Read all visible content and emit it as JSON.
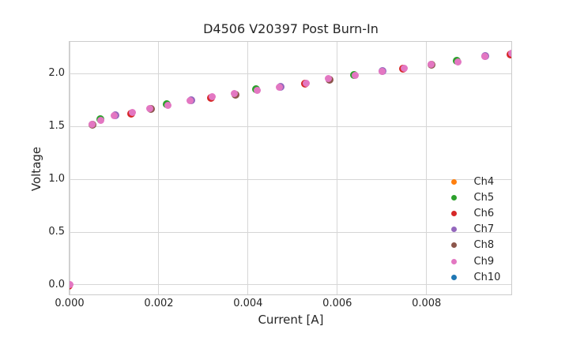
{
  "chart_data": {
    "type": "scatter",
    "title": "D4506 V20397 Post Burn-In",
    "xlabel": "Current [A]",
    "ylabel": "Voltage",
    "xlim": [
      0,
      0.0099
    ],
    "ylim": [
      -0.09,
      2.3
    ],
    "grid": true,
    "legend_position": "lower right",
    "xticks": [
      0,
      0.002,
      0.004,
      0.006,
      0.008
    ],
    "xtick_labels": [
      "0.000",
      "0.002",
      "0.004",
      "0.006",
      "0.008"
    ],
    "yticks": [
      0,
      0.5,
      1.0,
      1.5,
      2.0
    ],
    "ytick_labels": [
      "0.0",
      "0.5",
      "1.0",
      "1.5",
      "2.0"
    ],
    "series": [
      {
        "name": "Ch4",
        "color": "#ff7f0e"
      },
      {
        "name": "Ch5",
        "color": "#2ca02c"
      },
      {
        "name": "Ch6",
        "color": "#d62728"
      },
      {
        "name": "Ch7",
        "color": "#9467bd"
      },
      {
        "name": "Ch8",
        "color": "#8c564b"
      },
      {
        "name": "Ch9",
        "color": "#e377c2"
      },
      {
        "name": "Ch10",
        "color": "#1f77b4"
      }
    ],
    "overlap_note": "All seven channels plot nearly identical I-V points; Ch9 (pink) is drawn last and covers the others, with faint edges of lower channels peeking out.",
    "x": [
      0.0,
      0.0005,
      0.0007,
      0.001,
      0.0014,
      0.0018,
      0.0022,
      0.0027,
      0.0032,
      0.0037,
      0.0042,
      0.0047,
      0.0053,
      0.0058,
      0.0064,
      0.007,
      0.0075,
      0.0081,
      0.0087,
      0.0093,
      0.0099
    ],
    "voltage": [
      0.0,
      1.52,
      1.56,
      1.6,
      1.63,
      1.67,
      1.7,
      1.74,
      1.78,
      1.81,
      1.84,
      1.87,
      1.91,
      1.95,
      1.98,
      2.02,
      2.05,
      2.09,
      2.11,
      2.16,
      2.19
    ]
  },
  "style": {
    "background": "#ffffff",
    "grid_color": "#d6d6d6",
    "spine_color": "#cccccc",
    "text_color": "#262626",
    "top_marker_color": "#e377c2"
  }
}
